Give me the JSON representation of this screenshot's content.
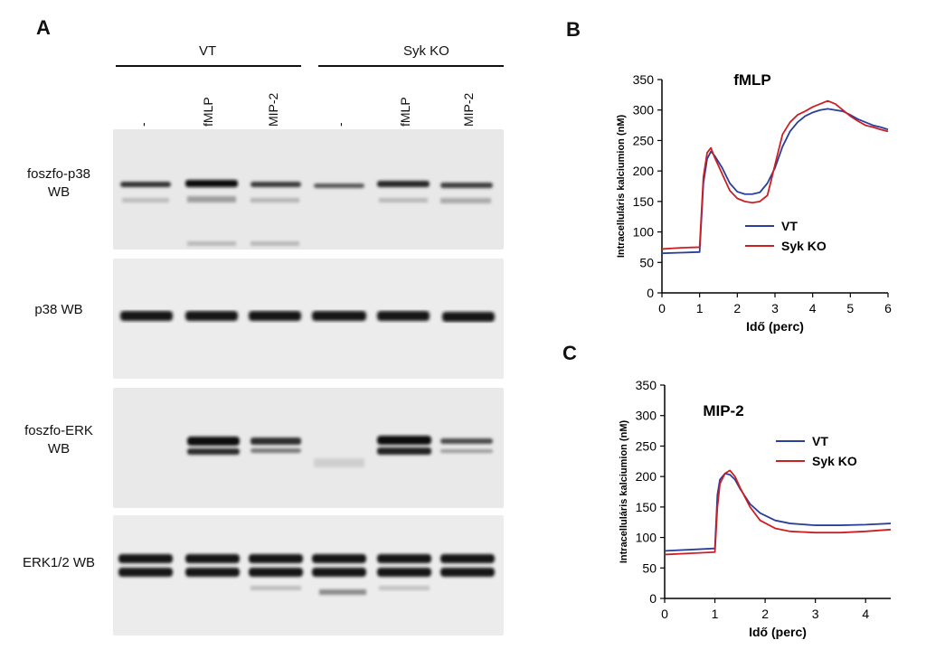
{
  "panelA": {
    "letter": "A",
    "groups": [
      "VT",
      "Syk KO"
    ],
    "lanes": [
      "-",
      "fMLP",
      "MIP-2",
      "-",
      "fMLP",
      "MIP-2"
    ],
    "blots": [
      {
        "label_line1": "foszfo-p38",
        "label_line2": "WB"
      },
      {
        "label_line1": "p38 WB",
        "label_line2": ""
      },
      {
        "label_line1": "foszfo-ERK",
        "label_line2": "WB"
      },
      {
        "label_line1": "ERK1/2 WB",
        "label_line2": ""
      }
    ]
  },
  "panelB": {
    "letter": "B"
  },
  "panelC": {
    "letter": "C"
  },
  "chart_data": [
    {
      "type": "line",
      "title": "fMLP",
      "xlabel": "Idő (perc)",
      "ylabel": "Intracelluláris kalciumion (nM)",
      "xlim": [
        0,
        6
      ],
      "ylim": [
        0,
        350
      ],
      "xticks": [
        0,
        1,
        2,
        3,
        4,
        5,
        6
      ],
      "yticks": [
        0,
        50,
        100,
        150,
        200,
        250,
        300,
        350
      ],
      "legend_position": "center-right",
      "series": [
        {
          "name": "VT",
          "color": "#2a3f99",
          "x": [
            0,
            0.5,
            1.0,
            1.1,
            1.2,
            1.3,
            1.4,
            1.6,
            1.8,
            2.0,
            2.2,
            2.4,
            2.6,
            2.8,
            3.0,
            3.2,
            3.4,
            3.6,
            3.8,
            4.0,
            4.2,
            4.4,
            4.6,
            4.8,
            5.0,
            5.2,
            5.4,
            5.6,
            5.8,
            6.0
          ],
          "y": [
            65,
            66,
            67,
            180,
            220,
            232,
            225,
            205,
            180,
            166,
            162,
            162,
            165,
            180,
            205,
            240,
            265,
            280,
            290,
            296,
            300,
            302,
            300,
            298,
            292,
            285,
            280,
            275,
            272,
            268
          ]
        },
        {
          "name": "Syk KO",
          "color": "#cc1f24",
          "x": [
            0,
            0.5,
            1.0,
            1.1,
            1.2,
            1.3,
            1.4,
            1.6,
            1.8,
            2.0,
            2.2,
            2.4,
            2.6,
            2.8,
            3.0,
            3.2,
            3.4,
            3.6,
            3.8,
            4.0,
            4.2,
            4.4,
            4.6,
            4.8,
            5.0,
            5.2,
            5.4,
            5.6,
            5.8,
            6.0
          ],
          "y": [
            72,
            74,
            75,
            190,
            230,
            238,
            222,
            195,
            168,
            155,
            150,
            148,
            150,
            160,
            210,
            260,
            280,
            292,
            298,
            305,
            310,
            315,
            310,
            300,
            290,
            282,
            275,
            272,
            268,
            265
          ]
        }
      ]
    },
    {
      "type": "line",
      "title": "MIP-2",
      "xlabel": "Idő (perc)",
      "ylabel": "Intracelluláris kalciumion (nM)",
      "xlim": [
        0,
        4.5
      ],
      "ylim": [
        0,
        350
      ],
      "xticks": [
        0,
        1,
        2,
        3,
        4
      ],
      "yticks": [
        0,
        50,
        100,
        150,
        200,
        250,
        300,
        350
      ],
      "legend_position": "top-right",
      "series": [
        {
          "name": "VT",
          "color": "#2a3f99",
          "x": [
            0,
            0.5,
            1.0,
            1.05,
            1.1,
            1.2,
            1.3,
            1.4,
            1.5,
            1.7,
            1.9,
            2.2,
            2.5,
            3.0,
            3.5,
            4.0,
            4.5
          ],
          "y": [
            78,
            80,
            82,
            170,
            195,
            205,
            203,
            195,
            180,
            155,
            140,
            128,
            123,
            120,
            120,
            121,
            123
          ]
        },
        {
          "name": "Syk KO",
          "color": "#cc1f24",
          "x": [
            0,
            0.5,
            1.0,
            1.05,
            1.1,
            1.2,
            1.3,
            1.4,
            1.5,
            1.7,
            1.9,
            2.2,
            2.5,
            3.0,
            3.5,
            4.0,
            4.5
          ],
          "y": [
            72,
            74,
            76,
            150,
            188,
            205,
            210,
            200,
            182,
            150,
            128,
            115,
            110,
            108,
            108,
            110,
            113
          ]
        }
      ]
    }
  ]
}
